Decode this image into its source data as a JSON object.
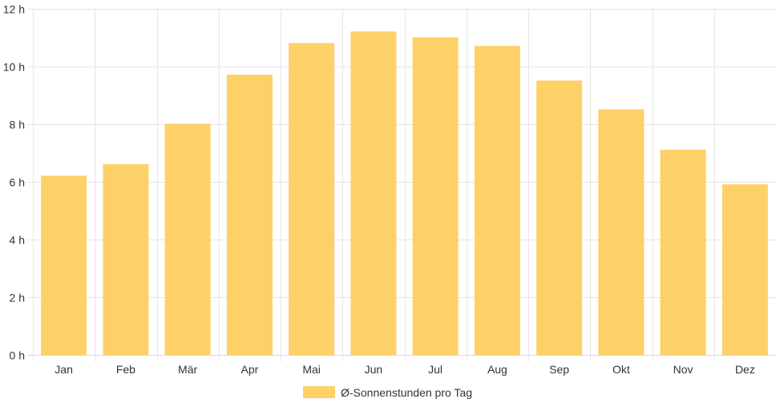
{
  "colors": {
    "bar_fill": "#fdd168",
    "bar_stroke": "#fdd168",
    "grid": "#e5e5e5",
    "text": "#333333"
  },
  "chart_data": {
    "type": "bar",
    "categories": [
      "Jan",
      "Feb",
      "Mär",
      "Apr",
      "Mai",
      "Jun",
      "Jul",
      "Aug",
      "Sep",
      "Okt",
      "Nov",
      "Dez"
    ],
    "series": [
      {
        "name": "Ø-Sonnenstunden pro Tag",
        "values": [
          6.2,
          6.6,
          8.0,
          9.7,
          10.8,
          11.2,
          11.0,
          10.7,
          9.5,
          8.5,
          7.1,
          5.9
        ]
      }
    ],
    "ylim": [
      0,
      12
    ],
    "yticks": [
      0,
      2,
      4,
      6,
      8,
      10,
      12
    ],
    "ytick_labels": [
      "0 h",
      "2 h",
      "4 h",
      "6 h",
      "8 h",
      "10 h",
      "12 h"
    ],
    "grid": true,
    "legend_position": "bottom"
  }
}
